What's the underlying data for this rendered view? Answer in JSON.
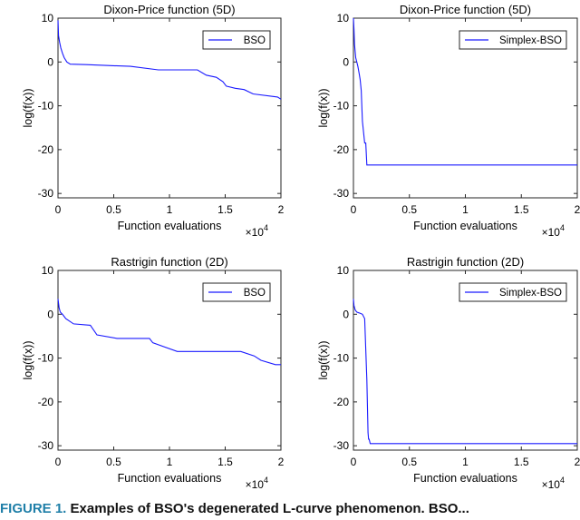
{
  "caption": {
    "label": "FIGURE 1.",
    "text": "Examples of BSO's degenerated L-curve phenomenon. BSO..."
  },
  "colors": {
    "series": "#1a1aff",
    "axis": "#262626",
    "caption_label": "#1f7fa8"
  },
  "chart_data": [
    {
      "type": "line",
      "title": "Dixon-Price function (5D)",
      "xlabel": "Function evaluations",
      "ylabel": "log(f(x))",
      "xlim": [
        0,
        20000
      ],
      "ylim": [
        -31,
        10
      ],
      "xticks": [
        0,
        5000,
        10000,
        15000,
        20000
      ],
      "xtick_labels": [
        "0",
        "0.5",
        "1",
        "1.5",
        "2"
      ],
      "yticks": [
        10,
        0,
        -10,
        -20,
        -30
      ],
      "ytick_labels": [
        "10",
        "0",
        "-10",
        "-20",
        "-30"
      ],
      "x_exponent": {
        "base": "×10",
        "exp": "4"
      },
      "legend": "top-right",
      "series": [
        {
          "name": "BSO",
          "x": [
            0,
            50,
            150,
            250,
            400,
            550,
            800,
            1100,
            2500,
            4500,
            6500,
            9000,
            12500,
            13300,
            14200,
            14800,
            15100,
            15900,
            16700,
            17500,
            19700,
            20000
          ],
          "y": [
            9.5,
            6,
            4.5,
            3.2,
            2,
            1,
            0,
            -0.5,
            -0.6,
            -0.8,
            -1,
            -1.8,
            -1.8,
            -3,
            -3.5,
            -4.5,
            -5.5,
            -6,
            -6.3,
            -7.3,
            -8,
            -8.5
          ]
        }
      ]
    },
    {
      "type": "line",
      "title": "Dixon-Price function (5D)",
      "xlabel": "Function evaluations",
      "ylabel": "log(f(x))",
      "xlim": [
        0,
        20000
      ],
      "ylim": [
        -31,
        10
      ],
      "xticks": [
        0,
        5000,
        10000,
        15000,
        20000
      ],
      "xtick_labels": [
        "0",
        "0.5",
        "1",
        "1.5",
        "2"
      ],
      "yticks": [
        10,
        0,
        -10,
        -20,
        -30
      ],
      "ytick_labels": [
        "10",
        "0",
        "-10",
        "-20",
        "-30"
      ],
      "x_exponent": {
        "base": "×10",
        "exp": "4"
      },
      "legend": "top-right",
      "series": [
        {
          "name": "Simplex-BSO",
          "x": [
            0,
            50,
            100,
            200,
            300,
            400,
            500,
            600,
            700,
            800,
            1000,
            1100,
            1200,
            20000
          ],
          "y": [
            10,
            7.5,
            4,
            1,
            0,
            -1,
            -2.5,
            -4,
            -6.5,
            -13.5,
            -18.5,
            -18.5,
            -23.5,
            -23.5
          ]
        }
      ]
    },
    {
      "type": "line",
      "title": "Rastrigin function (2D)",
      "xlabel": "Function evaluations",
      "ylabel": "log(f(x))",
      "xlim": [
        0,
        20000
      ],
      "ylim": [
        -31,
        10
      ],
      "xticks": [
        0,
        5000,
        10000,
        15000,
        20000
      ],
      "xtick_labels": [
        "0",
        "0.5",
        "1",
        "1.5",
        "2"
      ],
      "yticks": [
        10,
        0,
        -10,
        -20,
        -30
      ],
      "ytick_labels": [
        "10",
        "0",
        "-10",
        "-20",
        "-30"
      ],
      "x_exponent": {
        "base": "×10",
        "exp": "4"
      },
      "legend": "top-right",
      "series": [
        {
          "name": "BSO",
          "x": [
            0,
            100,
            200,
            400,
            700,
            1400,
            2900,
            3500,
            5300,
            8200,
            8500,
            10700,
            16400,
            17600,
            18200,
            19500,
            20000
          ],
          "y": [
            3.5,
            1.5,
            0.5,
            0,
            -1,
            -2.2,
            -2.5,
            -4.7,
            -5.5,
            -5.5,
            -6.5,
            -8.5,
            -8.5,
            -9.5,
            -10.5,
            -11.5,
            -11.5
          ]
        }
      ]
    },
    {
      "type": "line",
      "title": "Rastrigin function (2D)",
      "xlabel": "Function evaluations",
      "ylabel": "log(f(x))",
      "xlim": [
        0,
        20000
      ],
      "ylim": [
        -31,
        10
      ],
      "xticks": [
        0,
        5000,
        10000,
        15000,
        20000
      ],
      "xtick_labels": [
        "0",
        "0.5",
        "1",
        "1.5",
        "2"
      ],
      "yticks": [
        10,
        0,
        -10,
        -20,
        -30
      ],
      "ytick_labels": [
        "10",
        "0",
        "-10",
        "-20",
        "-30"
      ],
      "x_exponent": {
        "base": "×10",
        "exp": "4"
      },
      "legend": "top-right",
      "series": [
        {
          "name": "Simplex-BSO",
          "x": [
            0,
            50,
            150,
            300,
            500,
            800,
            1000,
            1200,
            1300,
            1350,
            1400,
            1500,
            20000
          ],
          "y": [
            3.5,
            2,
            1,
            0.5,
            0.3,
            0,
            -1,
            -15,
            -27,
            -28.5,
            -28.5,
            -29.5,
            -29.5
          ]
        }
      ]
    }
  ]
}
